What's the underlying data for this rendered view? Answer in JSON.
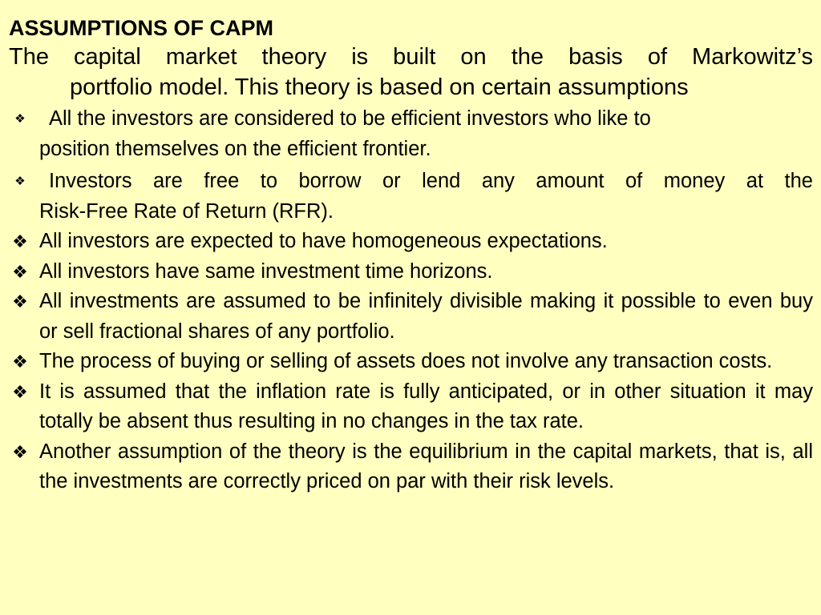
{
  "slide": {
    "title": "ASSUMPTIONS OF CAPM",
    "intro_line1": "The capital market theory is built on the basis of Markowitz’s",
    "intro_line2": "portfolio model.  This theory is based on certain assumptions",
    "bullet_icon": "diamond-bullet-icon",
    "bullets": [
      {
        "line1": "All the investors are considered to be efficient investors who like to",
        "line2": "position themselves on the efficient frontier."
      },
      {
        "line1": "Investors are free to borrow or lend any amount of money at the",
        "line2": "Risk-Free Rate of Return (RFR)."
      },
      {
        "text": "All investors are expected to have homogeneous expectations."
      },
      {
        "text": "All investors have same investment time horizons."
      },
      {
        "text": "All investments are assumed to be infinitely divisible making it possible to even buy or sell fractional shares of any portfolio."
      },
      {
        "text": "The process of buying or selling of assets does not involve any transaction costs."
      },
      {
        "text": "It is assumed that the inflation rate is fully anticipated, or in other situation it may totally be absent thus resulting in no changes in the tax rate."
      },
      {
        "text": "Another assumption of the theory is the equilibrium in the capital markets, that is, all the investments are correctly priced on par with their risk levels."
      }
    ]
  }
}
